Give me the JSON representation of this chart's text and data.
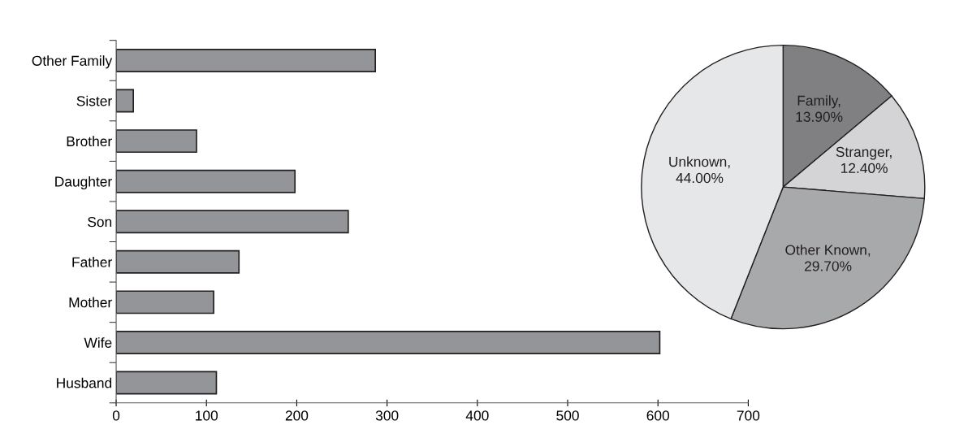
{
  "chart_data": [
    {
      "type": "bar",
      "orientation": "horizontal",
      "categories": [
        "Other Family",
        "Sister",
        "Brother",
        "Daughter",
        "Son",
        "Father",
        "Mother",
        "Wife",
        "Husband"
      ],
      "values": [
        287,
        19,
        89,
        198,
        257,
        136,
        108,
        602,
        111
      ],
      "color": "#939598",
      "xlim": [
        0,
        700
      ],
      "xticks": [
        0,
        100,
        200,
        300,
        400,
        500,
        600,
        700
      ],
      "grid": false,
      "legend": false
    },
    {
      "type": "pie",
      "categories": [
        "Family",
        "Stranger",
        "Other Known",
        "Unknown"
      ],
      "values": [
        13.9,
        12.4,
        29.7,
        44.0
      ],
      "value_labels": [
        ",\n13.90%",
        ",\n12.40%",
        ",\n29.70%",
        ",\n44.00%"
      ],
      "colors": [
        "#808083",
        "#d4d4d6",
        "#a8a9ab",
        "#e6e7e8"
      ],
      "legend": false
    }
  ]
}
